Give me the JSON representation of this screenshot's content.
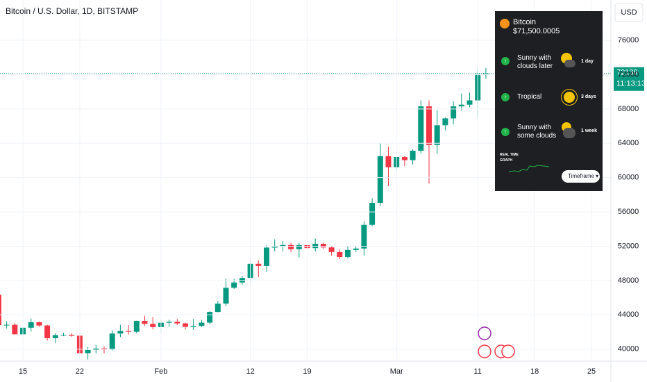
{
  "chart_data": {
    "type": "candlestick",
    "title": "Bitcoin / U.S. Dollar, 1D, BITSTAMP",
    "currency": "USD",
    "countdown": "11:13:13",
    "up_color": "#089981",
    "down_color": "#f23645",
    "grid": true,
    "categories": [
      null,
      null,
      null,
      "15",
      null,
      null,
      null,
      null,
      null,
      null,
      "22",
      null,
      null,
      null,
      null,
      null,
      null,
      null,
      null,
      null,
      "Feb",
      null,
      null,
      null,
      null,
      null,
      null,
      null,
      null,
      null,
      null,
      "12",
      null,
      null,
      null,
      null,
      null,
      null,
      "19",
      null,
      null,
      null,
      null,
      null,
      null,
      null,
      null,
      null,
      null,
      "Mar",
      null,
      null,
      null,
      null,
      null,
      null,
      null,
      null,
      null,
      "11",
      null,
      null,
      null,
      null,
      null,
      null,
      "18",
      null,
      null,
      null,
      null,
      null,
      null,
      "25"
    ],
    "open": [
      46340,
      42800,
      42840,
      41730,
      42500,
      43140,
      42760,
      41280,
      41640,
      41680,
      41570,
      39530,
      39900,
      40090,
      39950,
      41820,
      42120,
      42030,
      43300,
      42950,
      42580,
      43080,
      43190,
      43000,
      42600,
      42700,
      43090,
      44340,
      45300,
      47150,
      47770,
      48300,
      49950,
      49700,
      51840,
      51940,
      52140,
      51650,
      52130,
      51780,
      52280,
      51860,
      51320,
      50740,
      51570,
      51730,
      54490,
      57050,
      62500,
      61200,
      62400,
      62030,
      63130,
      68300,
      63800,
      66100,
      66900,
      68300,
      68500,
      69000,
      72100,
      null,
      null,
      null,
      null,
      null,
      null,
      null,
      null,
      null,
      null,
      null,
      null,
      null
    ],
    "high": [
      46500,
      43250,
      43050,
      43370,
      43570,
      43200,
      42850,
      41850,
      41900,
      41850,
      41880,
      40250,
      40500,
      40300,
      42200,
      42840,
      42800,
      43320,
      43900,
      43750,
      43480,
      43420,
      43500,
      43100,
      43500,
      43400,
      44400,
      45600,
      48200,
      48200,
      48550,
      50400,
      50350,
      52100,
      52800,
      52600,
      52400,
      52400,
      52500,
      52900,
      52400,
      52000,
      51650,
      51970,
      52000,
      54900,
      57600,
      64000,
      63600,
      62500,
      62500,
      63300,
      69000,
      69000,
      67800,
      67000,
      68900,
      69800,
      69900,
      72800,
      72800,
      null,
      null,
      null,
      null,
      null,
      null,
      null,
      null,
      null,
      null,
      null,
      null,
      null
    ],
    "low": [
      41500,
      42400,
      41700,
      41720,
      42050,
      42600,
      41000,
      40700,
      41500,
      41450,
      39450,
      38800,
      39500,
      39500,
      39850,
      41400,
      41700,
      41850,
      42700,
      42300,
      41900,
      42600,
      42800,
      42300,
      42250,
      42570,
      42900,
      44300,
      45000,
      47000,
      47500,
      47700,
      48400,
      49000,
      51400,
      51400,
      51300,
      50700,
      51700,
      51400,
      51700,
      50900,
      50500,
      50600,
      51300,
      50900,
      54300,
      56700,
      59000,
      60900,
      61300,
      61500,
      62800,
      59300,
      62800,
      65500,
      66200,
      67800,
      68200,
      67000,
      71500,
      null,
      null,
      null,
      null,
      null,
      null,
      null,
      null,
      null,
      null,
      null,
      null,
      null
    ],
    "close": [
      42800,
      42840,
      41730,
      42500,
      43140,
      42760,
      41280,
      41640,
      41680,
      41570,
      39530,
      39900,
      40090,
      39950,
      41820,
      42120,
      42030,
      43300,
      42950,
      42580,
      43080,
      43190,
      43000,
      42600,
      42700,
      43090,
      44340,
      45300,
      47150,
      47770,
      48300,
      49950,
      49700,
      51840,
      51940,
      52140,
      51650,
      52130,
      51780,
      52280,
      51860,
      51320,
      50740,
      51570,
      51730,
      54490,
      57050,
      62500,
      61200,
      62400,
      62030,
      63130,
      68300,
      63800,
      66100,
      66900,
      68300,
      68500,
      69000,
      72100,
      72139,
      null,
      null,
      null,
      null,
      null,
      null,
      null,
      null,
      null,
      null,
      null,
      null,
      null
    ],
    "ylim": [
      38600,
      80700
    ],
    "yticks": [
      40000,
      44000,
      48000,
      52000,
      56000,
      60000,
      64000,
      68000,
      72000,
      76000
    ]
  },
  "widget": {
    "asset": "Bitcoin",
    "price": "$71,500.0005",
    "forecasts": [
      {
        "label": "Sunny with clouds later",
        "horizon": "1 day"
      },
      {
        "label": "Tropical",
        "horizon": "3 days"
      },
      {
        "label": "Sunny with some clouds",
        "horizon": "1 week"
      }
    ],
    "graph_label": "REAL TIME GRAPH",
    "button": "Timeframe"
  }
}
